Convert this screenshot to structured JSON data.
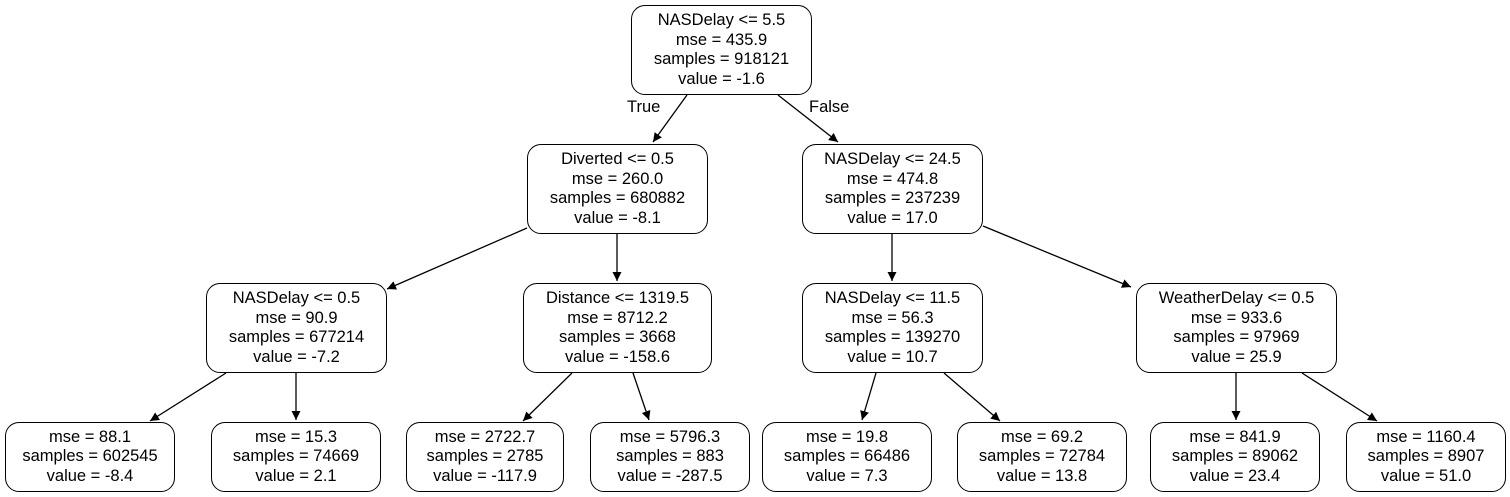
{
  "tree": {
    "edge_labels": {
      "true": "True",
      "false": "False"
    },
    "nodes": [
      {
        "id": "root",
        "lines": [
          "NASDelay <= 5.5",
          "mse = 435.9",
          "samples = 918121",
          "value = -1.6"
        ]
      },
      {
        "id": "diverted",
        "lines": [
          "Diverted <= 0.5",
          "mse = 260.0",
          "samples = 680882",
          "value = -8.1"
        ]
      },
      {
        "id": "nasdelay-24",
        "lines": [
          "NASDelay <= 24.5",
          "mse = 474.8",
          "samples = 237239",
          "value = 17.0"
        ]
      },
      {
        "id": "nasdelay-0",
        "lines": [
          "NASDelay <= 0.5",
          "mse = 90.9",
          "samples = 677214",
          "value = -7.2"
        ]
      },
      {
        "id": "distance",
        "lines": [
          "Distance <= 1319.5",
          "mse = 8712.2",
          "samples = 3668",
          "value = -158.6"
        ]
      },
      {
        "id": "nasdelay-11",
        "lines": [
          "NASDelay <= 11.5",
          "mse = 56.3",
          "samples = 139270",
          "value = 10.7"
        ]
      },
      {
        "id": "weatherdelay",
        "lines": [
          "WeatherDelay <= 0.5",
          "mse = 933.6",
          "samples = 97969",
          "value = 25.9"
        ]
      },
      {
        "id": "leaf-1",
        "lines": [
          "mse = 88.1",
          "samples = 602545",
          "value = -8.4"
        ]
      },
      {
        "id": "leaf-2",
        "lines": [
          "mse = 15.3",
          "samples = 74669",
          "value = 2.1"
        ]
      },
      {
        "id": "leaf-3",
        "lines": [
          "mse = 2722.7",
          "samples = 2785",
          "value = -117.9"
        ]
      },
      {
        "id": "leaf-4",
        "lines": [
          "mse = 5796.3",
          "samples = 883",
          "value = -287.5"
        ]
      },
      {
        "id": "leaf-5",
        "lines": [
          "mse = 19.8",
          "samples = 66486",
          "value = 7.3"
        ]
      },
      {
        "id": "leaf-6",
        "lines": [
          "mse = 69.2",
          "samples = 72784",
          "value = 13.8"
        ]
      },
      {
        "id": "leaf-7",
        "lines": [
          "mse = 841.9",
          "samples = 89062",
          "value = 23.4"
        ]
      },
      {
        "id": "leaf-8",
        "lines": [
          "mse = 1160.4",
          "samples = 8907",
          "value = 51.0"
        ]
      }
    ],
    "edges": [
      {
        "from": "root",
        "to": "diverted",
        "label": "true"
      },
      {
        "from": "root",
        "to": "nasdelay-24",
        "label": "false"
      },
      {
        "from": "diverted",
        "to": "nasdelay-0"
      },
      {
        "from": "diverted",
        "to": "distance"
      },
      {
        "from": "nasdelay-24",
        "to": "nasdelay-11"
      },
      {
        "from": "nasdelay-24",
        "to": "weatherdelay"
      },
      {
        "from": "nasdelay-0",
        "to": "leaf-1"
      },
      {
        "from": "nasdelay-0",
        "to": "leaf-2"
      },
      {
        "from": "distance",
        "to": "leaf-3"
      },
      {
        "from": "distance",
        "to": "leaf-4"
      },
      {
        "from": "nasdelay-11",
        "to": "leaf-5"
      },
      {
        "from": "nasdelay-11",
        "to": "leaf-6"
      },
      {
        "from": "weatherdelay",
        "to": "leaf-7"
      },
      {
        "from": "weatherdelay",
        "to": "leaf-8"
      }
    ]
  }
}
